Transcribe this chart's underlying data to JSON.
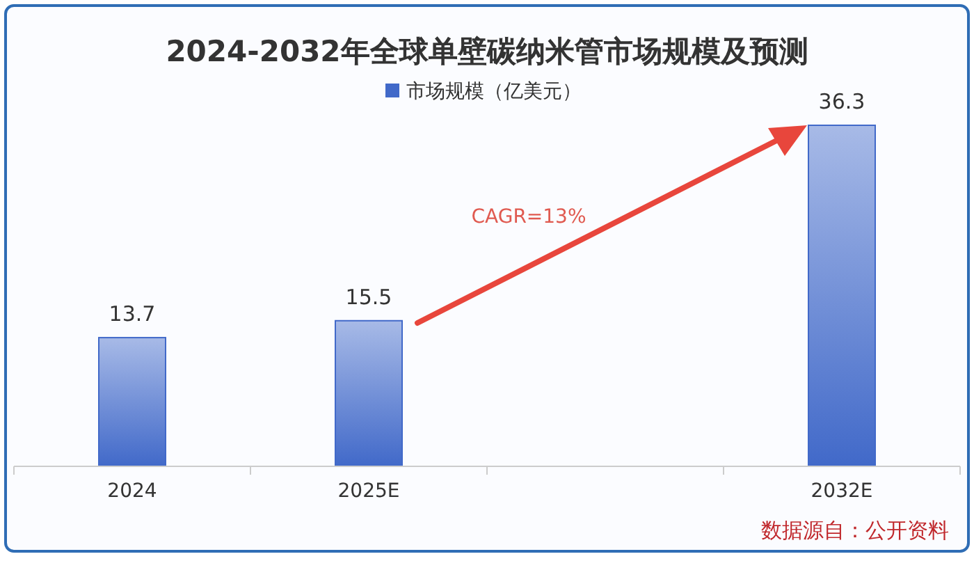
{
  "chart_data": {
    "type": "bar",
    "title": "2024-2032年全球单壁碳纳米管市场规模及预测",
    "categories": [
      "2024",
      "2025E",
      null,
      "2032E"
    ],
    "series": [
      {
        "name": "市场规模（亿美元）",
        "color": "#4169c9",
        "values": [
          13.7,
          15.5,
          null,
          36.3
        ]
      }
    ],
    "data_labels": true,
    "legend": "top",
    "annotations": [
      "CAGR=13%",
      "数据源自：公开资料"
    ]
  }
}
